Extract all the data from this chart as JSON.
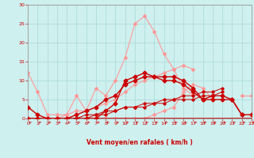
{
  "x": [
    0,
    1,
    2,
    3,
    4,
    5,
    6,
    7,
    8,
    9,
    10,
    11,
    12,
    13,
    14,
    15,
    16,
    17,
    18,
    19,
    20,
    21,
    22,
    23
  ],
  "pink_line1": [
    12,
    7,
    1,
    1,
    1,
    6,
    2,
    8,
    6,
    10,
    16,
    25,
    27,
    23,
    17,
    13,
    8,
    6,
    null,
    null,
    null,
    null,
    null,
    null
  ],
  "pink_line2": [
    null,
    null,
    null,
    null,
    null,
    null,
    null,
    null,
    null,
    null,
    null,
    null,
    null,
    null,
    null,
    null,
    null,
    null,
    null,
    null,
    null,
    null,
    6,
    6
  ],
  "pink_gust": [
    0,
    0,
    0,
    0,
    1,
    2,
    2,
    3,
    4,
    5,
    7,
    9,
    10,
    11,
    12,
    13,
    14,
    13,
    null,
    null,
    null,
    null,
    null,
    null
  ],
  "pink_line3": [
    0,
    0,
    0,
    0,
    0,
    0,
    0,
    0,
    0,
    0,
    0,
    0,
    0,
    1,
    2,
    3,
    7,
    9,
    8,
    5,
    null,
    null,
    null,
    null
  ],
  "dark_peak": [
    3,
    1,
    0,
    0,
    0,
    0,
    0,
    0,
    2,
    4,
    10,
    11,
    12,
    11,
    11,
    11,
    10,
    8,
    5,
    5,
    5,
    5,
    1,
    1
  ],
  "dark_broad": [
    0,
    0,
    0,
    0,
    0,
    1,
    2,
    3,
    5,
    6,
    9,
    10,
    11,
    11,
    10,
    10,
    9,
    7,
    5,
    6,
    6,
    5,
    1,
    null
  ],
  "dark_diag1": [
    0,
    0,
    0,
    0,
    0,
    0,
    0,
    1,
    1,
    2,
    3,
    3,
    4,
    4,
    5,
    5,
    6,
    6,
    7,
    7,
    8,
    null,
    null,
    null
  ],
  "dark_diag2": [
    0,
    0,
    0,
    0,
    0,
    0,
    1,
    1,
    2,
    2,
    3,
    3,
    3,
    4,
    4,
    5,
    5,
    5,
    6,
    6,
    7,
    null,
    null,
    null
  ],
  "dark_flat": [
    0,
    0,
    0,
    0,
    0,
    0,
    0,
    0,
    0,
    0,
    0,
    0,
    0,
    0,
    0,
    0,
    0,
    0,
    0,
    0,
    0,
    0,
    0,
    0
  ],
  "bg_color": "#cef0ef",
  "grid_color": "#a8d8d8",
  "dark_red": "#cc0000",
  "light_red": "#ff9999",
  "xlabel": "Vent moyen/en rafales ( km/h )",
  "ylim": [
    0,
    30
  ],
  "xlim": [
    0,
    23
  ],
  "yticks": [
    0,
    5,
    10,
    15,
    20,
    25,
    30
  ],
  "xticks": [
    0,
    1,
    2,
    3,
    4,
    5,
    6,
    7,
    8,
    9,
    10,
    11,
    12,
    13,
    14,
    15,
    16,
    17,
    18,
    19,
    20,
    21,
    22,
    23
  ]
}
